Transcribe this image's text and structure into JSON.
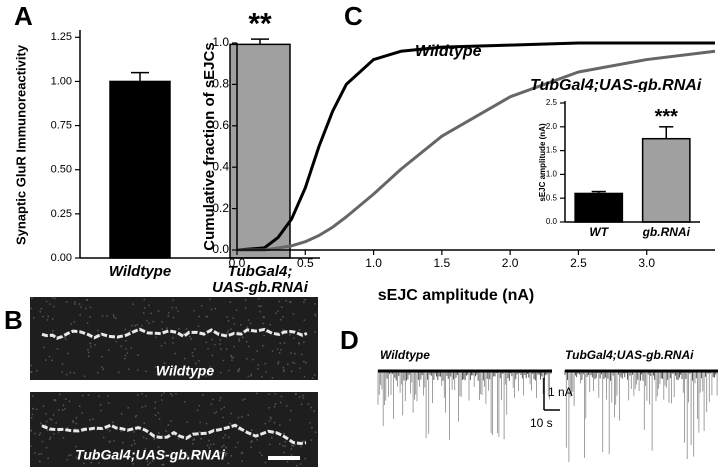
{
  "chart_data": [
    {
      "type": "bar",
      "panel": "A",
      "ylabel": "Synaptic GluR Immunoreactivity",
      "categories": [
        "Wildtype",
        "TubGal4;\nUAS-gb.RNAi"
      ],
      "values": [
        1.0,
        1.21
      ],
      "errors": [
        0.05,
        0.03
      ],
      "colors": [
        "#000000",
        "#a0a0a0"
      ],
      "ylim": [
        0,
        1.28
      ],
      "yticks": [
        {
          "value": 0,
          "label": "0.00"
        },
        {
          "value": 0.25,
          "label": "0.25"
        },
        {
          "value": 0.5,
          "label": "0.50"
        },
        {
          "value": 0.75,
          "label": "0.75"
        },
        {
          "value": 1,
          "label": "1.00"
        },
        {
          "value": 1.25,
          "label": "1.25"
        }
      ],
      "annotations": [
        "**"
      ]
    },
    {
      "type": "line",
      "panel": "C",
      "xlabel": "sEJC amplitude (nA)",
      "ylabel": "Cumulative fraction of sEJCs",
      "x": [
        0,
        0.2,
        0.3,
        0.4,
        0.5,
        0.6,
        0.7,
        0.8,
        1.0,
        1.2,
        1.5,
        2.0,
        2.5,
        3.0,
        3.5
      ],
      "series": [
        {
          "name": "Wildtype",
          "color": "#000000",
          "values": [
            0,
            0.01,
            0.06,
            0.15,
            0.3,
            0.5,
            0.67,
            0.8,
            0.92,
            0.96,
            0.98,
            0.99,
            1.0,
            1.0,
            1.0
          ]
        },
        {
          "name": "TubGal4;UAS-gb.RNAi",
          "color": "#666666",
          "values": [
            0,
            0,
            0.01,
            0.02,
            0.04,
            0.07,
            0.11,
            0.16,
            0.27,
            0.39,
            0.55,
            0.74,
            0.86,
            0.92,
            0.96
          ]
        }
      ],
      "xlim": [
        0,
        3.5
      ],
      "xticks": [
        {
          "value": 0,
          "label": "0.0"
        },
        {
          "value": 0.5,
          "label": "0.5"
        },
        {
          "value": 1,
          "label": "1.0"
        },
        {
          "value": 1.5,
          "label": "1.5"
        },
        {
          "value": 2,
          "label": "2.0"
        },
        {
          "value": 2.5,
          "label": "2.5"
        },
        {
          "value": 3,
          "label": "3.0"
        }
      ],
      "ylim": [
        0,
        1
      ],
      "yticks": [
        {
          "value": 0,
          "label": "0.0"
        },
        {
          "value": 0.2,
          "label": "0.2"
        },
        {
          "value": 0.4,
          "label": "0.4"
        },
        {
          "value": 0.6,
          "label": "0.6"
        },
        {
          "value": 0.8,
          "label": "0.8"
        },
        {
          "value": 1,
          "label": "1.0"
        }
      ]
    },
    {
      "type": "bar",
      "ylabel": "sEJC amplitude (nA)",
      "categories": [
        "WT",
        "gb.RNAi"
      ],
      "values": [
        0.6,
        1.75
      ],
      "errors": [
        0.04,
        0.25
      ],
      "colors": [
        "#000000",
        "#a0a0a0"
      ],
      "ylim": [
        0,
        2.5
      ],
      "yticks": [
        {
          "value": 0,
          "label": "0.0"
        },
        {
          "value": 0.5,
          "label": "0.5"
        },
        {
          "value": 1,
          "label": "1.0"
        },
        {
          "value": 1.5,
          "label": "1.5"
        },
        {
          "value": 2,
          "label": "2.0"
        },
        {
          "value": 2.5,
          "label": "2.5"
        }
      ],
      "annotations": [
        "***"
      ]
    }
  ],
  "panel_b": {
    "label": "B",
    "images": [
      "Wildtype",
      "TubGal4;UAS-gb.RNAi"
    ]
  },
  "panel_d": {
    "label": "D",
    "traces": [
      "Wildtype",
      "TubGal4;UAS-gb.RNAi"
    ],
    "scale_amplitude": "1 nA",
    "scale_time": "10 s"
  }
}
